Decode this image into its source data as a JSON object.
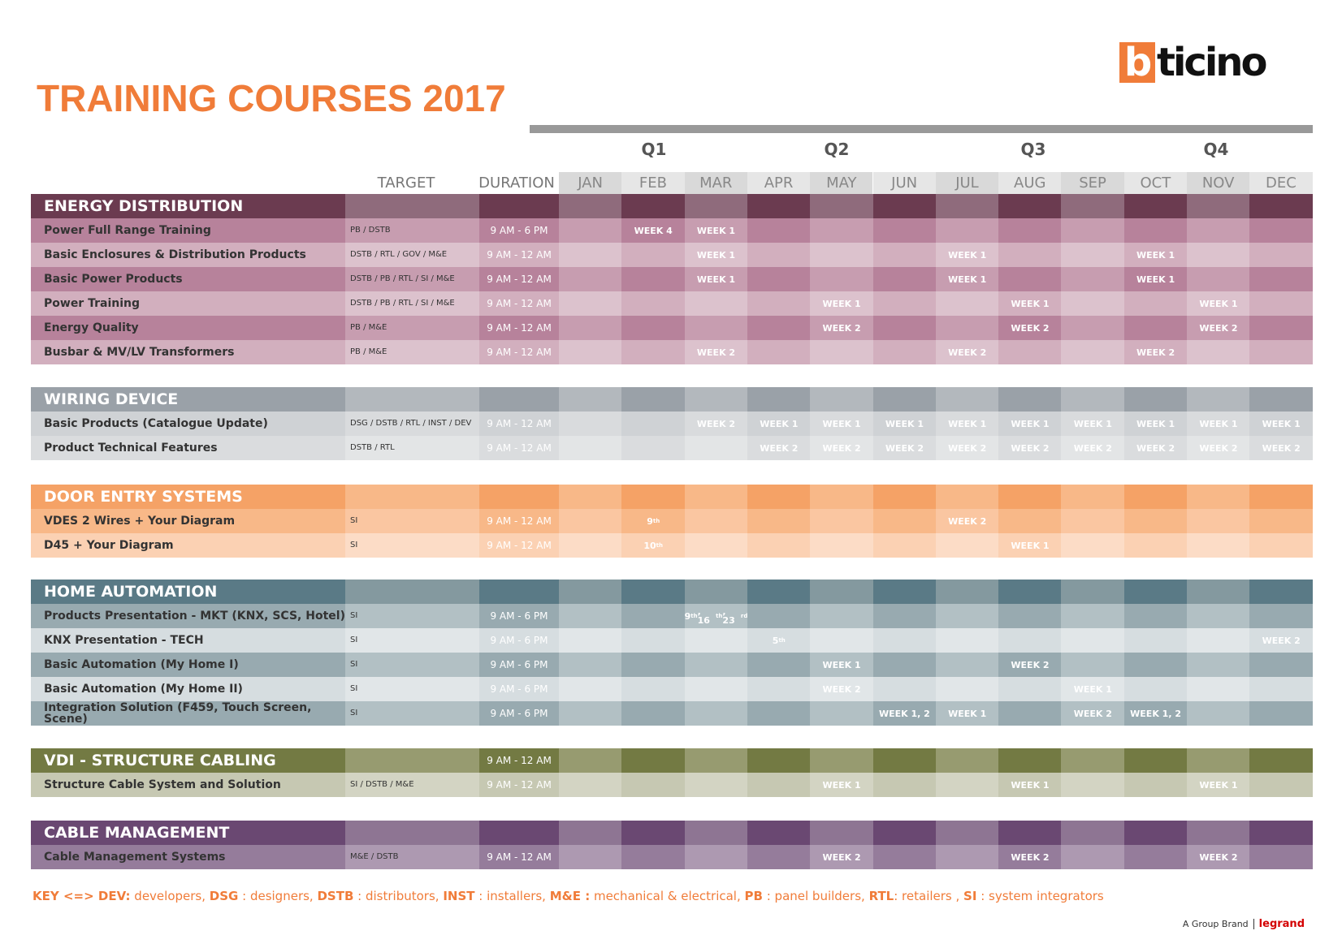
{
  "logo": {
    "first": "b",
    "rest": "ticino"
  },
  "title": "TRAINING COURSES  2017",
  "headers": {
    "target": "TARGET",
    "duration": "DURATION"
  },
  "quarters": [
    "Q1",
    "Q2",
    "Q3",
    "Q4"
  ],
  "months": [
    "JAN",
    "FEB",
    "MAR",
    "APR",
    "MAY",
    "JUN",
    "JUL",
    "AUG",
    "SEP",
    "OCT",
    "NOV",
    "DEC"
  ],
  "sections": [
    {
      "name": "ENERGY DISTRIBUTION",
      "colors": {
        "head_dark": "#6b3b50",
        "head_light": "#8f6b7c",
        "row_a_dark": "#b7829b",
        "row_a_light": "#c79db0",
        "row_b_dark": "#d2afbe",
        "row_b_light": "#dcc2cd"
      },
      "rows": [
        {
          "name": "Power Full Range Training",
          "target": "PB / DSTB",
          "duration": "9 AM - 6 PM",
          "months": [
            "",
            "WEEK 4",
            "WEEK 1",
            "",
            "",
            "",
            "",
            "",
            "",
            "",
            "",
            ""
          ]
        },
        {
          "name": "Basic Enclosures & Distribution Products",
          "target": "DSTB / RTL / GOV / M&E",
          "duration": "9 AM - 12 AM",
          "months": [
            "",
            "",
            "WEEK 1",
            "",
            "",
            "",
            "WEEK 1",
            "",
            "",
            "WEEK 1",
            "",
            ""
          ]
        },
        {
          "name": "Basic Power Products",
          "target": "DSTB / PB / RTL / SI / M&E",
          "duration": "9 AM - 12 AM",
          "months": [
            "",
            "",
            "WEEK 1",
            "",
            "",
            "",
            "WEEK 1",
            "",
            "",
            "WEEK 1",
            "",
            ""
          ]
        },
        {
          "name": "Power Training",
          "target": "DSTB / PB / RTL / SI / M&E",
          "duration": "9 AM - 12 AM",
          "months": [
            "",
            "",
            "",
            "",
            "WEEK 1",
            "",
            "",
            "WEEK 1",
            "",
            "",
            "WEEK 1",
            ""
          ]
        },
        {
          "name": "Energy Quality",
          "target": "PB / M&E",
          "duration": "9 AM - 12 AM",
          "months": [
            "",
            "",
            "",
            "",
            "WEEK 2",
            "",
            "",
            "WEEK 2",
            "",
            "",
            "WEEK 2",
            ""
          ]
        },
        {
          "name": "Busbar & MV/LV Transformers",
          "target": "PB / M&E",
          "duration": "9 AM - 12 AM",
          "months": [
            "",
            "",
            "WEEK 2",
            "",
            "",
            "",
            "WEEK 2",
            "",
            "",
            "WEEK 2",
            "",
            ""
          ]
        }
      ]
    },
    {
      "name": "WIRING DEVICE",
      "colors": {
        "head_dark": "#9aa1a8",
        "head_light": "#b3b8bd",
        "row_a_dark": "#cfd2d5",
        "row_a_light": "#d9dbdd",
        "row_b_dark": "#dadcde",
        "row_b_light": "#e3e5e6"
      },
      "rows": [
        {
          "name": "Basic Products (Catalogue Update)",
          "target": "DSG / DSTB / RTL / INST / DEV",
          "duration": "9 AM - 12 AM",
          "months": [
            "",
            "",
            "WEEK 2",
            "WEEK 1",
            "WEEK 1",
            "WEEK 1",
            "WEEK 1",
            "WEEK 1",
            "WEEK 1",
            "WEEK 1",
            "WEEK 1",
            "WEEK 1"
          ]
        },
        {
          "name": "Product Technical Features",
          "target": "DSTB / RTL",
          "duration": "9 AM - 12 AM",
          "months": [
            "",
            "",
            "",
            "WEEK 2",
            "WEEK 2",
            "WEEK 2",
            "WEEK 2",
            "WEEK 2",
            "WEEK 2",
            "WEEK 2",
            "WEEK 2",
            "WEEK 2"
          ]
        }
      ]
    },
    {
      "name": "DOOR ENTRY SYSTEMS",
      "colors": {
        "head_dark": "#f5a266",
        "head_light": "#f8b888",
        "row_a_dark": "#f8b888",
        "row_a_light": "#fac6a1",
        "row_b_dark": "#fbd1b3",
        "row_b_light": "#fcdcc6"
      },
      "rows": [
        {
          "name": "VDES 2 Wires + Your Diagram",
          "target": "SI",
          "duration": "9 AM - 12 AM",
          "months": [
            "",
            "9th",
            "",
            "",
            "",
            "",
            "WEEK 2",
            "",
            "",
            "",
            "",
            ""
          ]
        },
        {
          "name": "D45 + Your Diagram",
          "target": "SI",
          "duration": "9 AM - 12 AM",
          "months": [
            "",
            "10th",
            "",
            "",
            "",
            "",
            "",
            "WEEK 1",
            "",
            "",
            "",
            ""
          ]
        }
      ]
    },
    {
      "name": "HOME AUTOMATION",
      "colors": {
        "head_dark": "#5a7a86",
        "head_light": "#84999f",
        "row_a_dark": "#98aab0",
        "row_a_light": "#b2c0c4",
        "row_b_dark": "#d6dde0",
        "row_b_light": "#e1e6e8"
      },
      "rows": [
        {
          "name": "Products Presentation - MKT (KNX, SCS, Hotel)",
          "target": "SI",
          "duration": "9 AM - 6 PM",
          "months": [
            "",
            "",
            "9th, 16th, 23rd",
            "",
            "",
            "",
            "",
            "",
            "",
            "",
            "",
            ""
          ]
        },
        {
          "name": "KNX Presentation - TECH",
          "target": "SI",
          "duration": "9 AM - 6 PM",
          "months": [
            "",
            "",
            "",
            "5th",
            "",
            "",
            "",
            "",
            "",
            "",
            "",
            "WEEK 2"
          ]
        },
        {
          "name": "Basic Automation (My Home I)",
          "target": "SI",
          "duration": "9 AM - 6 PM",
          "months": [
            "",
            "",
            "",
            "",
            "WEEK 1",
            "",
            "",
            "WEEK 2",
            "",
            "",
            "",
            ""
          ]
        },
        {
          "name": "Basic Automation (My Home II)",
          "target": "SI",
          "duration": "9 AM - 6 PM",
          "months": [
            "",
            "",
            "",
            "",
            "WEEK 2",
            "",
            "",
            "",
            "WEEK 1",
            "",
            "",
            ""
          ]
        },
        {
          "name": "Integration Solution (F459, Touch Screen, Scene)",
          "target": "SI",
          "duration": "9 AM - 6 PM",
          "months": [
            "",
            "",
            "",
            "",
            "",
            "WEEK 1, 2",
            "WEEK 1",
            "",
            "WEEK 2",
            "WEEK 1, 2",
            "",
            ""
          ]
        }
      ]
    },
    {
      "name": "VDI - STRUCTURE CABLING",
      "head_duration": "9 AM - 12 AM",
      "colors": {
        "head_dark": "#737a43",
        "head_light": "#979b70",
        "row_a_dark": "#c6c8b2",
        "row_a_light": "#d3d4c3",
        "row_b_dark": "#c6c8b2",
        "row_b_light": "#d3d4c3"
      },
      "rows": [
        {
          "name": "Structure Cable System and Solution",
          "target": "SI / DSTB / M&E",
          "duration": "9 AM - 12 AM",
          "months": [
            "",
            "",
            "",
            "",
            "WEEK 1",
            "",
            "",
            "WEEK 1",
            "",
            "",
            "WEEK 1",
            ""
          ]
        }
      ]
    },
    {
      "name": "CABLE MANAGEMENT",
      "colors": {
        "head_dark": "#6a4872",
        "head_light": "#8e7593",
        "row_a_dark": "#957c9b",
        "row_a_light": "#ad99b1",
        "row_b_dark": "#957c9b",
        "row_b_light": "#ad99b1"
      },
      "rows": [
        {
          "name": "Cable Management Systems",
          "target": "M&E / DSTB",
          "duration": "9 AM - 12 AM",
          "months": [
            "",
            "",
            "",
            "",
            "WEEK 2",
            "",
            "",
            "WEEK 2",
            "",
            "",
            "WEEK 2",
            ""
          ]
        }
      ]
    }
  ],
  "key": {
    "prefix": "KEY <=> ",
    "items": [
      {
        "abbr": "DEV:",
        "text": " developers, "
      },
      {
        "abbr": "DSG",
        "text": " : designers, "
      },
      {
        "abbr": "DSTB",
        "text": " : distributors, "
      },
      {
        "abbr": "INST",
        "text": " : installers, "
      },
      {
        "abbr": "M&E :",
        "text": "  mechanical & electrical, "
      },
      {
        "abbr": "PB",
        "text": " : panel builders, "
      },
      {
        "abbr": "RTL",
        "text": ": retailers , "
      },
      {
        "abbr": "SI",
        "text": " : system integrators"
      }
    ]
  },
  "footer": {
    "group_brand": "A Group Brand",
    "legrand": "legrand"
  }
}
